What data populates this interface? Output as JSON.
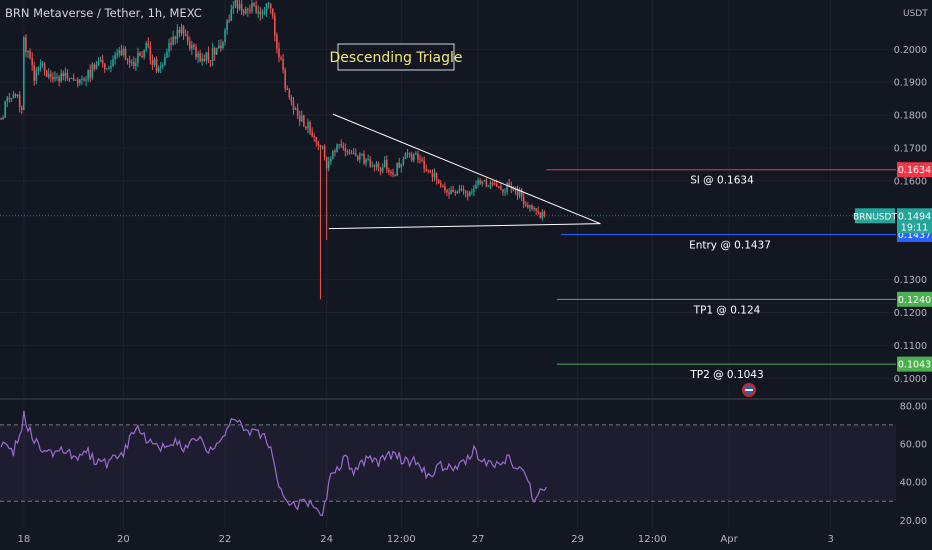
{
  "header": {
    "symbol_title": "BRN Metaverse / Tether, 1h, MEXC"
  },
  "colors": {
    "background": "#131722",
    "up": "#26a69a",
    "down": "#ef5350",
    "grid": "#1e222d",
    "axis_text": "#b2b5be",
    "rsi": "#9c6bd1",
    "triangle": "#ffffff"
  },
  "annotation": {
    "label": "Descending Triagle"
  },
  "price_axis": {
    "unit": "USDT",
    "min": 0.094,
    "max": 0.215,
    "ticks": [
      {
        "value": 0.2,
        "label": "0.2000"
      },
      {
        "value": 0.19,
        "label": "0.1900"
      },
      {
        "value": 0.18,
        "label": "0.1800"
      },
      {
        "value": 0.17,
        "label": "0.1700"
      },
      {
        "value": 0.16,
        "label": "0.1600"
      },
      {
        "value": 0.13,
        "label": "0.1300"
      },
      {
        "value": 0.12,
        "label": "0.1200"
      },
      {
        "value": 0.11,
        "label": "0.1100"
      },
      {
        "value": 0.1,
        "label": "0.1000"
      }
    ]
  },
  "time_axis": {
    "ticks": [
      {
        "idx": 11,
        "label": "18"
      },
      {
        "idx": 59,
        "label": "20"
      },
      {
        "idx": 108,
        "label": "22"
      },
      {
        "idx": 157,
        "label": "24"
      },
      {
        "idx": 193,
        "label": "12:00"
      },
      {
        "idx": 230,
        "label": "27"
      },
      {
        "idx": 278,
        "label": "29"
      },
      {
        "idx": 314,
        "label": "12:00"
      },
      {
        "idx": 351,
        "label": "Apr"
      },
      {
        "idx": 400,
        "label": "3"
      }
    ]
  },
  "levels": [
    {
      "name": "Sl",
      "label": "Sl @ 0.1634",
      "value": 0.1634,
      "badge": "0.1634",
      "color": "#f23645"
    },
    {
      "name": "Entry",
      "label": "Entry @ 0.1437",
      "value": 0.1437,
      "badge": "0.1437",
      "color": "#2962ff"
    },
    {
      "name": "TP1",
      "label": "TP1 @ 0.124",
      "value": 0.124,
      "badge": "0.1240",
      "color": "#4caf50"
    },
    {
      "name": "TP2",
      "label": "TP2 @ 0.1043",
      "value": 0.1043,
      "badge": "0.1043",
      "color": "#4caf50"
    }
  ],
  "last_price": {
    "ticker": "BRNUSDT",
    "value": 0.1494,
    "label": "0.1494",
    "countdown": "19:11"
  },
  "rsi_axis": {
    "min": 17,
    "max": 82,
    "ticks": [
      {
        "value": 80,
        "label": "80.00"
      },
      {
        "value": 60,
        "label": "60.00"
      },
      {
        "value": 40,
        "label": "40.00"
      },
      {
        "value": 20,
        "label": "20.00"
      }
    ],
    "band": [
      30,
      70
    ]
  },
  "chart_data": {
    "type": "candlestick",
    "interval": "1h",
    "ohlc_columns": [
      "open",
      "high",
      "low",
      "close"
    ],
    "anchors": [
      [
        0,
        0.179
      ],
      [
        2,
        0.183
      ],
      [
        5,
        0.186
      ],
      [
        8,
        0.187
      ],
      [
        10,
        0.181
      ],
      [
        11,
        0.202
      ],
      [
        13,
        0.198
      ],
      [
        16,
        0.192
      ],
      [
        20,
        0.195
      ],
      [
        26,
        0.19
      ],
      [
        30,
        0.192
      ],
      [
        35,
        0.189
      ],
      [
        40,
        0.19
      ],
      [
        46,
        0.196
      ],
      [
        52,
        0.194
      ],
      [
        58,
        0.2
      ],
      [
        64,
        0.196
      ],
      [
        70,
        0.201
      ],
      [
        76,
        0.193
      ],
      [
        82,
        0.202
      ],
      [
        88,
        0.206
      ],
      [
        93,
        0.199
      ],
      [
        98,
        0.197
      ],
      [
        103,
        0.199
      ],
      [
        107,
        0.201
      ],
      [
        110,
        0.21
      ],
      [
        113,
        0.214
      ],
      [
        120,
        0.212
      ],
      [
        127,
        0.213
      ],
      [
        130,
        0.212
      ],
      [
        136,
        0.192
      ],
      [
        140,
        0.183
      ],
      [
        146,
        0.178
      ],
      [
        151,
        0.174
      ],
      [
        155,
        0.17
      ],
      [
        157,
        0.165
      ],
      [
        160,
        0.169
      ],
      [
        163,
        0.172
      ],
      [
        166,
        0.168
      ],
      [
        170,
        0.169
      ],
      [
        175,
        0.166
      ],
      [
        180,
        0.164
      ],
      [
        185,
        0.165
      ],
      [
        190,
        0.163
      ],
      [
        195,
        0.168
      ],
      [
        200,
        0.167
      ],
      [
        205,
        0.164
      ],
      [
        210,
        0.16
      ],
      [
        215,
        0.157
      ],
      [
        220,
        0.158
      ],
      [
        225,
        0.156
      ],
      [
        230,
        0.161
      ],
      [
        235,
        0.159
      ],
      [
        240,
        0.157
      ],
      [
        245,
        0.158
      ],
      [
        250,
        0.156
      ],
      [
        254,
        0.152
      ],
      [
        258,
        0.15
      ],
      [
        262,
        0.1494
      ]
    ],
    "spikes": [
      {
        "idx": 154,
        "low": 0.124
      },
      {
        "idx": 157,
        "low": 0.142
      },
      {
        "idx": 113,
        "high": 0.215
      }
    ],
    "triangle": {
      "upper": {
        "from": [
          160,
          0.1803
        ],
        "to": [
          289,
          0.147
        ]
      },
      "lower": {
        "from": [
          158,
          0.1455
        ],
        "to": [
          289,
          0.147
        ]
      }
    },
    "rsi": {
      "anchors": [
        [
          0,
          58
        ],
        [
          3,
          62
        ],
        [
          6,
          56
        ],
        [
          9,
          64
        ],
        [
          11,
          76
        ],
        [
          14,
          66
        ],
        [
          18,
          60
        ],
        [
          24,
          55
        ],
        [
          30,
          58
        ],
        [
          36,
          52
        ],
        [
          42,
          56
        ],
        [
          48,
          48
        ],
        [
          54,
          52
        ],
        [
          58,
          54
        ],
        [
          62,
          62
        ],
        [
          66,
          70
        ],
        [
          70,
          62
        ],
        [
          76,
          58
        ],
        [
          82,
          62
        ],
        [
          88,
          58
        ],
        [
          94,
          64
        ],
        [
          100,
          56
        ],
        [
          106,
          60
        ],
        [
          110,
          70
        ],
        [
          113,
          72
        ],
        [
          118,
          68
        ],
        [
          124,
          66
        ],
        [
          128,
          64
        ],
        [
          132,
          48
        ],
        [
          136,
          32
        ],
        [
          142,
          28
        ],
        [
          148,
          30
        ],
        [
          152,
          26
        ],
        [
          155,
          22
        ],
        [
          158,
          40
        ],
        [
          162,
          48
        ],
        [
          166,
          52
        ],
        [
          170,
          46
        ],
        [
          176,
          52
        ],
        [
          182,
          50
        ],
        [
          188,
          54
        ],
        [
          194,
          52
        ],
        [
          200,
          50
        ],
        [
          206,
          44
        ],
        [
          212,
          48
        ],
        [
          218,
          46
        ],
        [
          224,
          50
        ],
        [
          228,
          56
        ],
        [
          232,
          52
        ],
        [
          238,
          50
        ],
        [
          244,
          52
        ],
        [
          250,
          48
        ],
        [
          254,
          40
        ],
        [
          257,
          30
        ],
        [
          260,
          36
        ],
        [
          263,
          38
        ]
      ]
    }
  }
}
